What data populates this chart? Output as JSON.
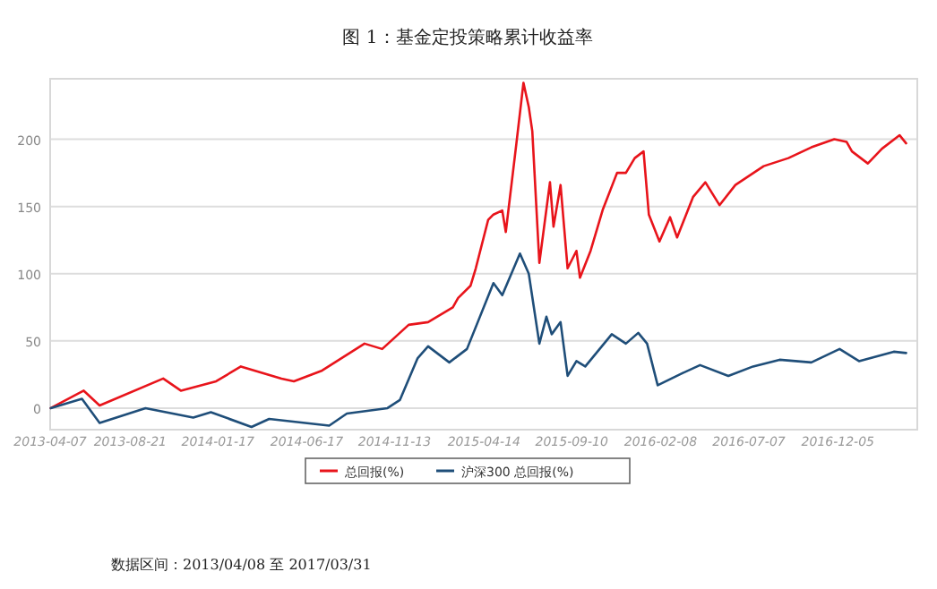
{
  "chart_data": {
    "type": "line",
    "title": "图 1：基金定投策略累计收益率",
    "series": [
      {
        "name": "总回报(%)",
        "color": "#e8141b",
        "x": [
          "2013-04-08",
          "2013-06-03",
          "2013-06-30",
          "2013-10-16",
          "2013-11-15",
          "2014-01-14",
          "2014-02-25",
          "2014-05-05",
          "2014-05-26",
          "2014-07-13",
          "2014-09-23",
          "2014-10-23",
          "2014-12-07",
          "2015-01-09",
          "2015-02-20",
          "2015-03-01",
          "2015-03-22",
          "2015-03-31",
          "2015-04-21",
          "2015-04-30",
          "2015-05-15",
          "2015-05-21",
          "2015-06-08",
          "2015-06-20",
          "2015-06-29",
          "2015-07-05",
          "2015-07-17",
          "2015-08-04",
          "2015-08-10",
          "2015-08-22",
          "2015-09-03",
          "2015-09-18",
          "2015-09-24",
          "2015-10-12",
          "2015-11-02",
          "2015-11-26",
          "2015-12-11",
          "2015-12-26",
          "2016-01-10",
          "2016-01-19",
          "2016-02-06",
          "2016-02-24",
          "2016-03-07",
          "2016-04-03",
          "2016-04-24",
          "2016-05-18",
          "2016-06-14",
          "2016-08-01",
          "2016-09-12",
          "2016-10-21",
          "2016-11-29",
          "2016-12-20",
          "2016-12-29",
          "2017-01-25",
          "2017-02-18",
          "2017-03-20",
          "2017-03-31"
        ],
        "values": [
          0,
          13,
          2,
          22,
          13,
          20,
          31,
          22,
          20,
          28,
          48,
          44,
          62,
          64,
          75,
          82,
          91,
          104,
          140,
          144,
          147,
          131,
          197,
          242,
          224,
          206,
          108,
          168,
          135,
          166,
          104,
          117,
          97,
          117,
          148,
          175,
          175,
          186,
          191,
          144,
          124,
          142,
          127,
          157,
          168,
          151,
          166,
          180,
          186,
          194,
          200,
          198,
          191,
          182,
          193,
          203,
          197
        ]
      },
      {
        "name": "沪深300 总回报(%)",
        "color": "#1f4e79",
        "x": [
          "2013-04-08",
          "2013-05-31",
          "2013-06-30",
          "2013-09-16",
          "2013-12-06",
          "2014-01-05",
          "2014-03-15",
          "2014-04-14",
          "2014-07-25",
          "2014-08-24",
          "2014-11-01",
          "2014-11-22",
          "2014-12-22",
          "2015-01-09",
          "2015-02-14",
          "2015-03-16",
          "2015-04-30",
          "2015-05-15",
          "2015-06-14",
          "2015-06-29",
          "2015-07-17",
          "2015-07-29",
          "2015-08-07",
          "2015-08-22",
          "2015-09-03",
          "2015-09-18",
          "2015-10-03",
          "2015-11-17",
          "2015-12-11",
          "2016-01-01",
          "2016-01-16",
          "2016-02-03",
          "2016-03-16",
          "2016-04-15",
          "2016-06-02",
          "2016-07-14",
          "2016-08-28",
          "2016-10-21",
          "2016-12-08",
          "2017-01-10",
          "2017-03-10",
          "2017-03-31"
        ],
        "values": [
          0,
          7,
          -11,
          0,
          -7,
          -3,
          -14,
          -8,
          -13,
          -4,
          0,
          6,
          37,
          46,
          34,
          44,
          93,
          84,
          115,
          100,
          48,
          68,
          55,
          64,
          24,
          35,
          31,
          55,
          48,
          56,
          48,
          17,
          26,
          32,
          24,
          31,
          36,
          34,
          44,
          35,
          42,
          41
        ]
      }
    ],
    "xlim": [
      "2013-04-07",
      "2017-04-19"
    ],
    "xticks": [
      "2013-04-07",
      "2013-08-21",
      "2014-01-17",
      "2014-06-17",
      "2014-11-13",
      "2015-04-14",
      "2015-09-10",
      "2016-02-08",
      "2016-07-07",
      "2016-12-05"
    ],
    "ylim": [
      -16,
      245
    ],
    "yticks": [
      0,
      50,
      100,
      150,
      200
    ],
    "grid": "y",
    "legend": "bottom",
    "marker": "none",
    "line_style": "solid",
    "annotations": [
      "数据区间：2013/04/08 至 2017/03/31"
    ]
  }
}
